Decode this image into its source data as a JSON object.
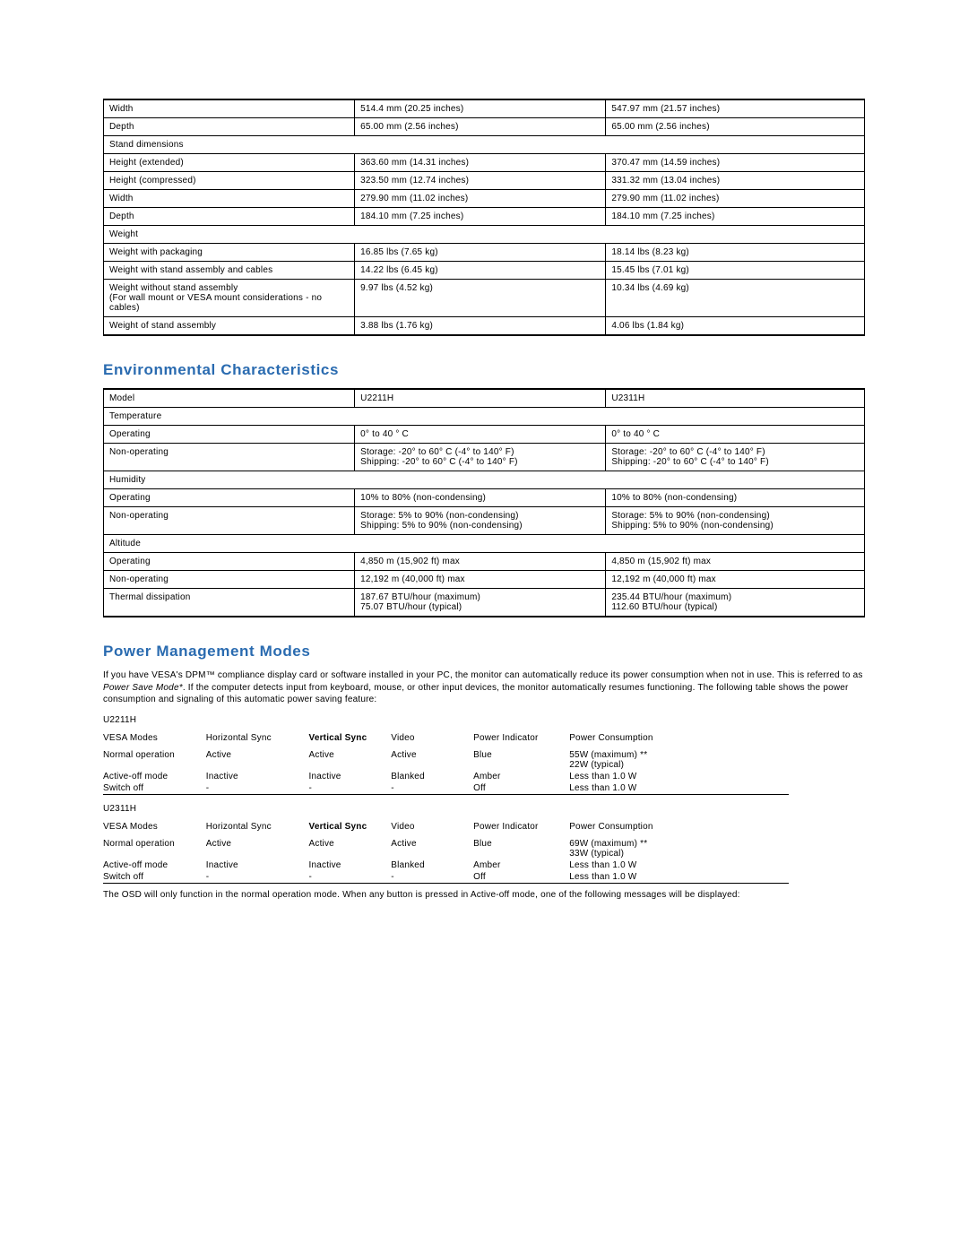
{
  "tables": {
    "physical": {
      "rows": [
        {
          "type": "data",
          "cells": [
            "Width",
            "514.4 mm (20.25 inches)",
            "547.97 mm (21.57 inches)"
          ]
        },
        {
          "type": "data",
          "cells": [
            "Depth",
            "65.00 mm (2.56 inches)",
            "65.00 mm (2.56 inches)"
          ]
        },
        {
          "type": "span",
          "cells": [
            "Stand dimensions"
          ]
        },
        {
          "type": "data",
          "cells": [
            "Height (extended)",
            "363.60 mm (14.31 inches)",
            "370.47 mm (14.59 inches)"
          ]
        },
        {
          "type": "data",
          "cells": [
            "Height (compressed)",
            "323.50 mm (12.74 inches)",
            "331.32 mm (13.04 inches)"
          ]
        },
        {
          "type": "data",
          "cells": [
            "Width",
            "279.90 mm (11.02 inches)",
            "279.90 mm (11.02 inches)"
          ]
        },
        {
          "type": "data",
          "cells": [
            "Depth",
            "184.10 mm (7.25 inches)",
            "184.10 mm (7.25 inches)"
          ]
        },
        {
          "type": "span",
          "cells": [
            "Weight"
          ]
        },
        {
          "type": "data",
          "cells": [
            "Weight with packaging",
            "16.85 lbs (7.65 kg)",
            "18.14 lbs (8.23 kg)"
          ]
        },
        {
          "type": "data",
          "cells": [
            "Weight with stand assembly and cables",
            "14.22 lbs (6.45 kg)",
            "15.45 lbs (7.01 kg)"
          ]
        },
        {
          "type": "data",
          "cells": [
            "Weight without stand assembly\n(For wall mount or VESA mount considerations - no cables)",
            "9.97 lbs (4.52 kg)",
            "10.34 lbs (4.69 kg)"
          ]
        },
        {
          "type": "data",
          "cells": [
            "Weight of stand assembly",
            "3.88 lbs (1.76 kg)",
            "4.06 lbs (1.84 kg)"
          ]
        }
      ]
    },
    "env": {
      "title": "Environmental Characteristics",
      "rows": [
        {
          "type": "data",
          "cells": [
            "Model",
            "U2211H",
            "U2311H"
          ]
        },
        {
          "type": "span",
          "cells": [
            "Temperature"
          ]
        },
        {
          "type": "data",
          "cells": [
            "Operating",
            "0° to 40 ° C",
            "0° to 40 ° C"
          ]
        },
        {
          "type": "data",
          "cells": [
            "Non-operating",
            "Storage: -20° to 60° C (-4° to 140° F)\nShipping: -20° to 60° C (-4° to 140° F)",
            "Storage: -20° to 60° C (-4° to 140° F)\nShipping: -20° to 60° C (-4° to 140° F)"
          ]
        },
        {
          "type": "span",
          "cells": [
            "Humidity"
          ]
        },
        {
          "type": "data",
          "cells": [
            "Operating",
            "10% to 80% (non-condensing)",
            "10% to 80% (non-condensing)"
          ]
        },
        {
          "type": "data",
          "cells": [
            "Non-operating",
            "Storage: 5% to 90% (non-condensing)\nShipping: 5% to 90% (non-condensing)",
            "Storage: 5% to 90% (non-condensing)\nShipping: 5% to 90% (non-condensing)"
          ]
        },
        {
          "type": "span",
          "cells": [
            "Altitude"
          ]
        },
        {
          "type": "data",
          "cells": [
            "Operating",
            "4,850 m (15,902 ft) max",
            "4,850 m (15,902 ft) max"
          ]
        },
        {
          "type": "data",
          "cells": [
            "Non-operating",
            "12,192 m (40,000 ft) max",
            "12,192 m (40,000 ft) max"
          ]
        },
        {
          "type": "data",
          "cells": [
            "Thermal dissipation",
            "187.67 BTU/hour (maximum)\n75.07 BTU/hour (typical)",
            "235.44 BTU/hour (maximum)\n112.60 BTU/hour (typical)"
          ]
        }
      ]
    }
  },
  "power": {
    "title": "Power Management Modes",
    "intro_pre": "If you have VESA's DPM™ compliance display card or software installed in your PC, the monitor can automatically reduce its power consumption when not in use. This is referred to as ",
    "intro_ital": "Power Save Mode*",
    "intro_post": ". If the computer detects input from keyboard, mouse, or other input devices, the monitor automatically resumes functioning. The following table shows the power consumption and signaling of this automatic power saving feature:",
    "headers": [
      "VESA Modes",
      "Horizontal Sync",
      "Vertical Sync",
      "Video",
      "Power Indicator",
      "Power Consumption"
    ],
    "models": [
      {
        "name": "U2211H",
        "rows": [
          [
            "Normal operation",
            "Active",
            "Active",
            "Active",
            "Blue",
            "55W (maximum) **\n22W (typical)"
          ],
          [
            "Active-off mode",
            "Inactive",
            "Inactive",
            "Blanked",
            "Amber",
            "Less than 1.0 W"
          ],
          [
            "Switch off",
            "-",
            "-",
            "-",
            "Off",
            "Less than 1.0 W"
          ]
        ]
      },
      {
        "name": "U2311H",
        "rows": [
          [
            "Normal operation",
            "Active",
            "Active",
            "Active",
            "Blue",
            "69W (maximum) **\n33W (typical)"
          ],
          [
            "Active-off mode",
            "Inactive",
            "Inactive",
            "Blanked",
            "Amber",
            "Less than 1.0 W"
          ],
          [
            "Switch off",
            "-",
            "-",
            "-",
            "Off",
            "Less than 1.0 W"
          ]
        ]
      }
    ],
    "footer": "The OSD will only function in the normal operation mode. When any button is pressed in Active-off mode, one of the following messages will be displayed:"
  }
}
